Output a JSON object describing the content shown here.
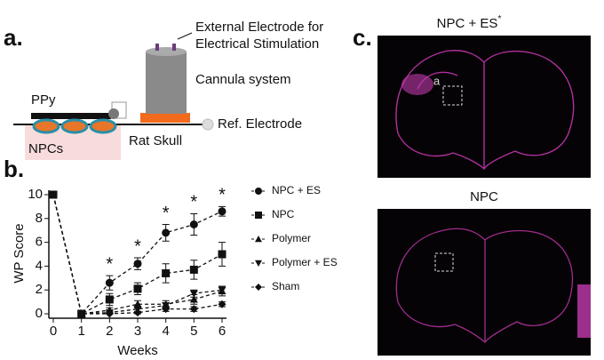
{
  "panel_a": {
    "label": "a.",
    "electrode_line1": "External Electrode for",
    "electrode_line2": "Electrical Stimulation",
    "cannula": "Cannula system",
    "ppy": "PPy",
    "ref": "Ref. Electrode",
    "npcs": "NPCs",
    "skull": "Rat Skull"
  },
  "panel_c": {
    "label": "c.",
    "top_title": "NPC + ES",
    "top_title_sup": "*",
    "inset_label": "a",
    "bottom_title": "NPC"
  },
  "chart_data": {
    "type": "line",
    "panel_label": "b.",
    "x_label": "Weeks",
    "y_label": "WP Score",
    "x": [
      0,
      1,
      2,
      3,
      4,
      5,
      6
    ],
    "xlim": [
      0,
      6
    ],
    "xticks": [
      0,
      1,
      2,
      3,
      4,
      5,
      6
    ],
    "ylim": [
      0,
      10
    ],
    "yticks": [
      0,
      2,
      4,
      6,
      8,
      10
    ],
    "line_style": "dashed",
    "series": [
      {
        "name": "NPC + ES",
        "color": "#111111",
        "marker": "circle",
        "values": [
          10,
          0,
          2.6,
          4.2,
          6.8,
          7.5,
          8.6
        ],
        "errors": [
          0,
          0,
          0.6,
          0.5,
          0.7,
          0.9,
          0.4
        ]
      },
      {
        "name": "NPC",
        "color": "#111111",
        "marker": "square",
        "values": [
          10,
          0,
          1.2,
          2.1,
          3.4,
          3.7,
          5.0
        ],
        "errors": [
          0,
          0,
          0.5,
          0.5,
          0.8,
          0.8,
          1.0
        ]
      },
      {
        "name": "Polymer",
        "color": "#111111",
        "marker": "triangle",
        "values": [
          10,
          0,
          0.3,
          0.8,
          0.8,
          1.2,
          1.9
        ],
        "errors": [
          0,
          0,
          0.2,
          0.3,
          0.3,
          0.4,
          0.4
        ]
      },
      {
        "name": "Polymer + ES",
        "color": "#111111",
        "marker": "triangle-down",
        "values": [
          10,
          0,
          0.1,
          0.4,
          0.7,
          1.7,
          2.0
        ],
        "errors": [
          0,
          0,
          0.1,
          0.2,
          0.2,
          0.3,
          0.3
        ]
      },
      {
        "name": "Sham",
        "color": "#111111",
        "marker": "diamond",
        "values": [
          10,
          0,
          0,
          0.1,
          0.4,
          0.4,
          0.8
        ],
        "errors": [
          0,
          0,
          0,
          0.1,
          0.2,
          0.2,
          0.2
        ]
      }
    ],
    "annotations": [
      {
        "x": 2,
        "label": "*"
      },
      {
        "x": 3,
        "label": "*"
      },
      {
        "x": 4,
        "label": "*"
      },
      {
        "x": 5,
        "label": "*"
      },
      {
        "x": 6,
        "label": "*"
      }
    ]
  }
}
